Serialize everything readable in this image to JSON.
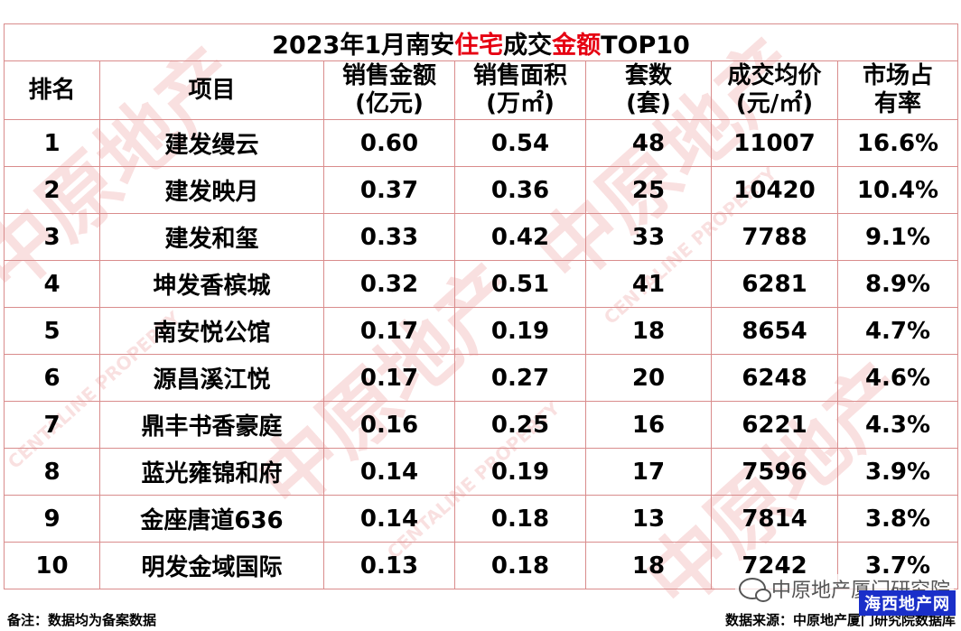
{
  "title": {
    "prefix": "2023年1月南安",
    "red1": "住宅",
    "middle": "成交",
    "red2": "金额",
    "suffix": "TOP10"
  },
  "accent_color": "#e60012",
  "headers": [
    [
      "排名"
    ],
    [
      "项目"
    ],
    [
      "销售金额",
      "(亿元)"
    ],
    [
      "销售面积",
      "(万㎡)"
    ],
    [
      "套数",
      "(套)"
    ],
    [
      "成交均价",
      "(元/㎡)"
    ],
    [
      "市场占",
      "有率"
    ]
  ],
  "rows": [
    [
      "1",
      "建发缦云",
      "0.60",
      "0.54",
      "48",
      "11007",
      "16.6%"
    ],
    [
      "2",
      "建发映月",
      "0.37",
      "0.36",
      "25",
      "10420",
      "10.4%"
    ],
    [
      "3",
      "建发和玺",
      "0.33",
      "0.42",
      "33",
      "7788",
      "9.1%"
    ],
    [
      "4",
      "坤发香槟城",
      "0.32",
      "0.51",
      "41",
      "6281",
      "8.9%"
    ],
    [
      "5",
      "南安悦公馆",
      "0.17",
      "0.19",
      "18",
      "8654",
      "4.7%"
    ],
    [
      "6",
      "源昌溪江悦",
      "0.17",
      "0.27",
      "20",
      "6248",
      "4.6%"
    ],
    [
      "7",
      "鼎丰书香豪庭",
      "0.16",
      "0.25",
      "16",
      "6221",
      "4.3%"
    ],
    [
      "8",
      "蓝光雍锦和府",
      "0.14",
      "0.19",
      "17",
      "7596",
      "3.9%"
    ],
    [
      "9",
      "金座唐道636",
      "0.14",
      "0.18",
      "13",
      "7814",
      "3.8%"
    ],
    [
      "10",
      "明发金域国际",
      "0.13",
      "0.18",
      "18",
      "7242",
      "3.7%"
    ]
  ],
  "footer": {
    "note": "备注：数据均为备案数据",
    "source": "数据来源：中原地产厦门研究院数据库"
  },
  "badge": {
    "icon": "wechat-icon",
    "text": "中原地产厦门研究院"
  },
  "corner_logo": "海西地产网",
  "watermark": {
    "main": "中原地产",
    "sub": "CENTALINE PROPERTY"
  }
}
